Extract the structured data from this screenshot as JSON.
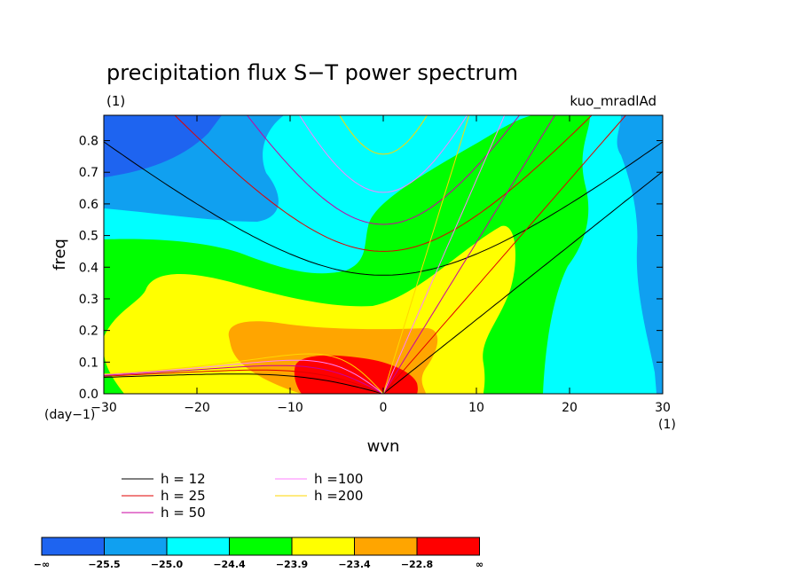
{
  "chart_data": {
    "type": "contour",
    "title": "precipitation flux S−T power spectrum",
    "subtitle_left": "(1)",
    "subtitle_right": "kuo_mradlAd",
    "xlabel": "wvn",
    "ylabel": "freq",
    "x_unit_label": "(1)",
    "y_unit_label": "(day−1)",
    "xlim": [
      -30,
      30
    ],
    "ylim": [
      0,
      0.88
    ],
    "xticks": [
      -30,
      -20,
      -10,
      0,
      10,
      20,
      30
    ],
    "yticks": [
      0.0,
      0.1,
      0.2,
      0.3,
      0.4,
      0.5,
      0.6,
      0.7,
      0.8
    ],
    "xtick_labels": [
      "−30",
      "−20",
      "−10",
      "0",
      "10",
      "20",
      "30"
    ],
    "ytick_labels": [
      "0.0",
      "0.1",
      "0.2",
      "0.3",
      "0.4",
      "0.5",
      "0.6",
      "0.7",
      "0.8"
    ],
    "contour_levels": [
      -25.5,
      -25.0,
      -24.4,
      -23.9,
      -23.4,
      -22.8
    ],
    "colorbar_labels": [
      "−∞",
      "−25.5",
      "−25.0",
      "−24.4",
      "−23.9",
      "−23.4",
      "−22.8",
      "∞"
    ],
    "colors": [
      "#1e64f0",
      "#10a0f0",
      "#00ffff",
      "#00ff00",
      "#ffff00",
      "#ffa500",
      "#ff0000"
    ],
    "dispersion_curves": [
      {
        "name": "h = 12",
        "h": 12,
        "color": "#000000"
      },
      {
        "name": "h = 25",
        "h": 25,
        "color": "#e00000"
      },
      {
        "name": "h = 50",
        "h": 50,
        "color": "#c800a0"
      },
      {
        "name": "h =100",
        "h": 100,
        "color": "#ff80ff"
      },
      {
        "name": "h =200",
        "h": 200,
        "color": "#ffd700"
      }
    ]
  }
}
